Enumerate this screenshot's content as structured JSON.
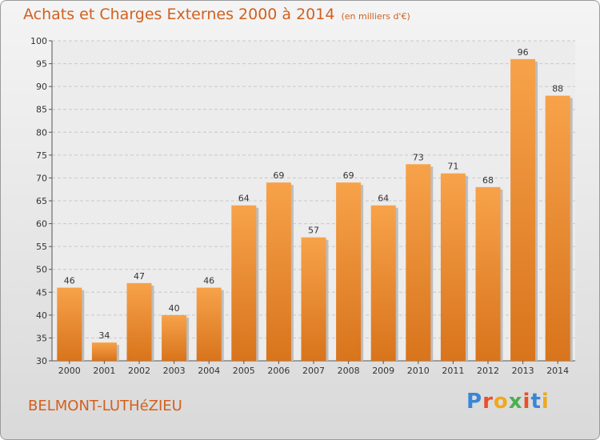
{
  "title": "Achats et Charges Externes 2000 à 2014",
  "subtitle": "(en milliers d'€)",
  "town": "BELMONT-LUTHéZIEU",
  "logo": {
    "letters": [
      "P",
      "r",
      "o",
      "x",
      "i",
      "t",
      "i"
    ],
    "colors": [
      "#3a86d6",
      "#e8502a",
      "#f0a81e",
      "#4caf50",
      "#e8502a",
      "#3a86d6",
      "#f0a81e"
    ]
  },
  "chart_data": {
    "type": "bar",
    "categories": [
      "2000",
      "2001",
      "2002",
      "2003",
      "2004",
      "2005",
      "2006",
      "2007",
      "2008",
      "2009",
      "2010",
      "2011",
      "2012",
      "2013",
      "2014"
    ],
    "values": [
      46,
      34,
      47,
      40,
      46,
      64,
      69,
      57,
      69,
      64,
      73,
      71,
      68,
      96,
      88
    ],
    "ylim": [
      30,
      100
    ],
    "yticks": [
      30,
      35,
      40,
      45,
      50,
      55,
      60,
      65,
      70,
      75,
      80,
      85,
      90,
      95,
      100
    ],
    "grid": true,
    "bar_color": "#f0922e"
  }
}
